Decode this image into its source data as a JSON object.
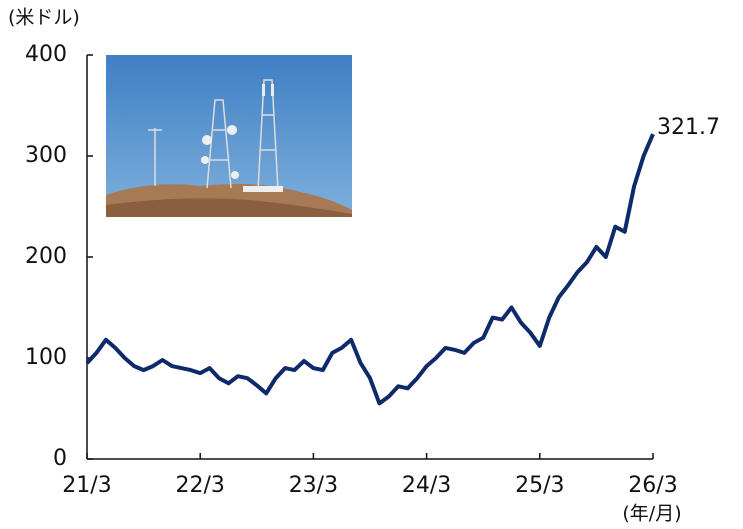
{
  "chart_data": {
    "type": "line",
    "y_label": "(米ドル)",
    "x_label": "(年/月)",
    "x": [
      "21/3",
      "21/4",
      "21/5",
      "21/6",
      "21/7",
      "21/8",
      "21/9",
      "21/10",
      "21/11",
      "21/12",
      "22/1",
      "22/2",
      "22/3",
      "22/4",
      "22/5",
      "22/6",
      "22/7",
      "22/8",
      "22/9",
      "22/10",
      "22/11",
      "22/12",
      "23/1",
      "23/2",
      "23/3",
      "23/4",
      "23/5",
      "23/6",
      "23/7",
      "23/8",
      "23/9",
      "23/10",
      "23/11",
      "23/12",
      "24/1",
      "24/2",
      "24/3",
      "24/4",
      "24/5",
      "24/6",
      "24/7",
      "24/8",
      "24/9",
      "24/10",
      "24/11",
      "24/12",
      "25/1",
      "25/2",
      "25/3",
      "25/4",
      "25/5",
      "25/6",
      "25/7",
      "25/8",
      "25/9",
      "25/10",
      "25/11",
      "25/12",
      "26/1",
      "26/2",
      "26/3"
    ],
    "values": [
      95,
      105,
      118,
      110,
      100,
      92,
      88,
      92,
      98,
      92,
      90,
      88,
      85,
      90,
      80,
      75,
      82,
      80,
      73,
      65,
      80,
      90,
      88,
      97,
      90,
      88,
      105,
      110,
      118,
      95,
      80,
      55,
      62,
      72,
      70,
      80,
      92,
      100,
      110,
      108,
      105,
      115,
      120,
      140,
      138,
      150,
      135,
      125,
      112,
      140,
      160,
      172,
      185,
      195,
      210,
      200,
      230,
      225,
      270,
      300,
      321.7
    ],
    "color": "#0d2a6b",
    "xticks": [
      "21/3",
      "22/3",
      "23/3",
      "24/3",
      "25/3",
      "26/3"
    ],
    "ylim": [
      0,
      400
    ],
    "yticks": [
      0,
      100,
      200,
      300,
      400
    ],
    "grid": false
  }
}
